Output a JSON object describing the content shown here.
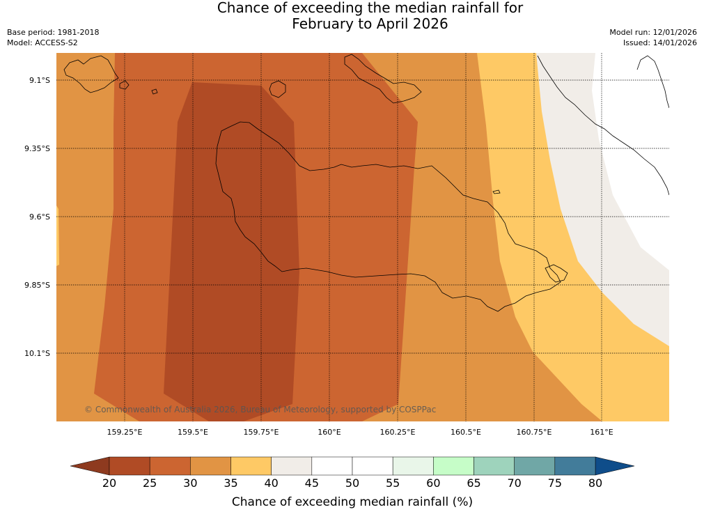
{
  "title": {
    "line1": "Chance of exceeding the median rainfall for",
    "line2": "February to April 2026"
  },
  "meta": {
    "base_period": "Base period: 1981-2018",
    "model": "Model: ACCESS-S2",
    "model_run": "Model run: 12/01/2026",
    "issued": "Issued: 14/01/2026"
  },
  "map": {
    "lat_labels": [
      "9.1°S",
      "9.35°S",
      "9.6°S",
      "9.85°S",
      "10.1°S"
    ],
    "lon_labels": [
      "159.25°E",
      "159.5°E",
      "159.75°E",
      "160°E",
      "160.25°E",
      "160.5°E",
      "160.75°E",
      "161°E"
    ],
    "copyright": "© Commonwealth of Australia 2026, Bureau of Meteorology, supported by COSPPac",
    "zones": [
      {
        "name": "band-20-25",
        "color": "#b04b25"
      },
      {
        "name": "band-25-30",
        "color": "#cc6531"
      },
      {
        "name": "band-30-35",
        "color": "#e19444"
      },
      {
        "name": "band-35-40",
        "color": "#fec965"
      },
      {
        "name": "band-40-45",
        "color": "#f1ede8"
      },
      {
        "name": "band-45-50",
        "color": "#ffffff"
      }
    ]
  },
  "colorbar": {
    "title": "Chance of exceeding median rainfall (%)",
    "ticks": [
      "20",
      "25",
      "30",
      "35",
      "40",
      "45",
      "50",
      "55",
      "60",
      "65",
      "70",
      "75",
      "80"
    ],
    "under_color": "#8e3a1f",
    "over_color": "#0f4d8a",
    "colors": [
      "#b04b25",
      "#cc6531",
      "#e19444",
      "#fec965",
      "#f1ede8",
      "#ffffff",
      "#ffffff",
      "#e9f6e9",
      "#c6fdc8",
      "#9ed3bc",
      "#70a7a6",
      "#427c9a"
    ]
  }
}
